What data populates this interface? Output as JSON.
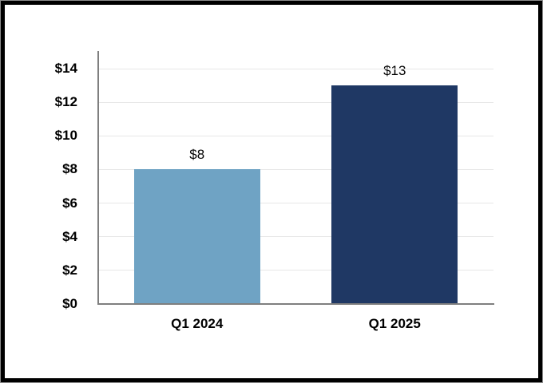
{
  "chart_data": {
    "type": "bar",
    "title": "",
    "xlabel": "",
    "ylabel": "",
    "categories": [
      "Q1 2024",
      "Q1 2025"
    ],
    "values": [
      8,
      13
    ],
    "data_labels": [
      "$8",
      "$13"
    ],
    "bar_colors": [
      "#6FA3C4",
      "#1F3864"
    ],
    "ylim": [
      0,
      15
    ],
    "ytick_values": [
      0,
      2,
      4,
      6,
      8,
      10,
      12,
      14
    ],
    "ytick_labels": [
      "$0",
      "$2",
      "$4",
      "$6",
      "$8",
      "$10",
      "$12",
      "$14"
    ],
    "grid": true,
    "legend": "none",
    "currency_prefix": "$"
  },
  "colors": {
    "background": "#FFFFFF",
    "frame": "#000000",
    "frame_outer_edge": "#8C8C8C",
    "axis_line": "#7F7F7F",
    "gridline": "#E7E7E7",
    "text": "#000000"
  }
}
